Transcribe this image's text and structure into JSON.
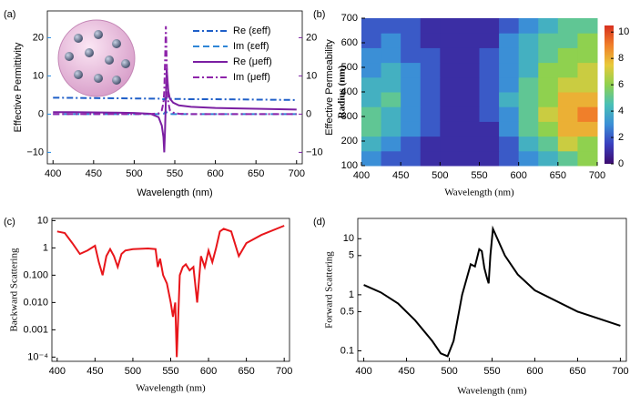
{
  "chart_data": [
    {
      "type": "line",
      "panel": "(a)",
      "xlabel": "Wavelength (nm)",
      "ylabel": "Effective Permittivity",
      "y2label": "Effective Permeability",
      "ylabel_color": "#1e88e5",
      "y2label_color": "#7b1fa2",
      "xlim": [
        393,
        707
      ],
      "xticks": [
        400,
        450,
        500,
        550,
        600,
        650,
        700
      ],
      "ylim": [
        -13,
        27
      ],
      "yticks": [
        {
          "value": -10,
          "label": "−10"
        },
        0,
        10,
        20
      ],
      "y2lim": [
        -13,
        27
      ],
      "y2ticks": [
        {
          "value": -10,
          "label": "−10"
        },
        0,
        10,
        20
      ],
      "x": [
        400,
        425,
        450,
        475,
        500,
        520,
        530,
        534,
        536,
        537,
        538,
        539,
        540,
        541,
        542,
        544,
        548,
        555,
        570,
        600,
        650,
        700
      ],
      "series": [
        {
          "name": "Re (εeff)",
          "color": "#1f5fc8",
          "dash": "dashdot",
          "values": [
            4.3,
            4.25,
            4.2,
            4.15,
            4.1,
            4.06,
            4.04,
            4.0,
            3.9,
            3.8,
            4.1,
            4.3,
            4.1,
            4.0,
            4.0,
            3.98,
            3.98,
            3.96,
            3.9,
            3.9,
            3.8,
            3.7
          ]
        },
        {
          "name": "Im (εeff)",
          "color": "#2f86d6",
          "dash": "dashed",
          "values": [
            0,
            0,
            0,
            0,
            0,
            0,
            0,
            0.05,
            0.1,
            0.2,
            0.5,
            0.8,
            0.4,
            0.2,
            0.1,
            0.05,
            0,
            0,
            0,
            0,
            0,
            0
          ]
        },
        {
          "name": "Re (μeff)",
          "color": "#7b1fa2",
          "dash": "solid",
          "axis": "y2",
          "values": [
            0.5,
            0.5,
            0.45,
            0.4,
            0.3,
            0.1,
            -0.8,
            -3,
            -6,
            -10,
            -4,
            4,
            12,
            9,
            6,
            4,
            3,
            2.3,
            1.9,
            1.6,
            1.4,
            1.2
          ]
        },
        {
          "name": "Im (μeff)",
          "color": "#8e24aa",
          "dash": "dashdot",
          "axis": "y2",
          "values": [
            0,
            0,
            0,
            0,
            0,
            0.05,
            0.2,
            1,
            3,
            6,
            14,
            23,
            14,
            6,
            3,
            1,
            0.4,
            0.1,
            0,
            0,
            0,
            0
          ]
        }
      ]
    },
    {
      "type": "heatmap",
      "panel": "(b)",
      "xlabel": "Wavelength (nm)",
      "ylabel": "Radius (nm)",
      "xlim": [
        400,
        700
      ],
      "xticks": [
        400,
        450,
        500,
        550,
        600,
        650,
        700
      ],
      "ylim": [
        100,
        700
      ],
      "yticks": [
        100,
        200,
        300,
        400,
        500,
        600,
        700
      ],
      "zlim": [
        0,
        10.5
      ],
      "zticks": [
        0,
        2,
        4,
        6,
        8,
        10
      ],
      "colorscale": [
        "#3d0b6e",
        "#3a3fbf",
        "#3b8fd6",
        "#49c0b6",
        "#8fd14f",
        "#e8c93a",
        "#f07f2a",
        "#d7301f"
      ],
      "x": [
        412.5,
        437.5,
        462.5,
        487.5,
        512.5,
        537.5,
        562.5,
        587.5,
        612.5,
        637.5,
        662.5,
        687.5
      ],
      "y": [
        130,
        190,
        250,
        310,
        370,
        430,
        490,
        550,
        610,
        670
      ],
      "z": [
        [
          3,
          2,
          2,
          1,
          1,
          1,
          1,
          2,
          3,
          4,
          5,
          6
        ],
        [
          4,
          3,
          2,
          1,
          1,
          1,
          1,
          2,
          4,
          5,
          7,
          6
        ],
        [
          5,
          4,
          3,
          2,
          1,
          1,
          1,
          3,
          5,
          6,
          8,
          8
        ],
        [
          5,
          4,
          3,
          2,
          1,
          1,
          2,
          3,
          5,
          7,
          8,
          9
        ],
        [
          4,
          5,
          3,
          2,
          1,
          1,
          2,
          4,
          5,
          6,
          8,
          8
        ],
        [
          4,
          4,
          3,
          2,
          1,
          1,
          2,
          3,
          5,
          6,
          7,
          7
        ],
        [
          3,
          4,
          3,
          2,
          1,
          1,
          2,
          3,
          4,
          6,
          6,
          7
        ],
        [
          3,
          3,
          2,
          2,
          1,
          1,
          2,
          3,
          4,
          5,
          6,
          6
        ],
        [
          2,
          3,
          2,
          1,
          1,
          1,
          1,
          3,
          4,
          5,
          5,
          6
        ],
        [
          2,
          2,
          2,
          1,
          1,
          1,
          1,
          2,
          3,
          4,
          5,
          5
        ]
      ]
    },
    {
      "type": "line",
      "panel": "(c)",
      "xlabel": "Wavelength (nm)",
      "ylabel": "Backward Scattering",
      "log_y": true,
      "xlim": [
        393,
        707
      ],
      "xticks": [
        400,
        450,
        500,
        550,
        600,
        650,
        700
      ],
      "ylim": [
        7e-05,
        12
      ],
      "yticks": [
        {
          "value": 0.0001,
          "label": "10⁻⁴"
        },
        0.001,
        {
          "value": 0.01,
          "label": "0.010"
        },
        {
          "value": 0.1,
          "label": "0.100"
        },
        1,
        10
      ],
      "x": [
        400,
        410,
        420,
        430,
        440,
        450,
        455,
        460,
        465,
        470,
        475,
        480,
        485,
        490,
        500,
        520,
        530,
        533,
        536,
        540,
        545,
        550,
        553,
        556,
        558,
        562,
        566,
        570,
        575,
        580,
        585,
        590,
        595,
        600,
        605,
        610,
        615,
        620,
        630,
        640,
        650,
        670,
        700
      ],
      "series": [
        {
          "color": "#e8161b",
          "dash": "solid",
          "values": [
            4,
            3.5,
            1.5,
            0.6,
            0.8,
            1.2,
            0.3,
            0.1,
            0.5,
            0.9,
            0.5,
            0.2,
            0.6,
            0.8,
            0.9,
            0.95,
            0.9,
            0.2,
            0.4,
            0.1,
            0.05,
            0.01,
            0.003,
            0.01,
            0.0001,
            0.1,
            0.2,
            0.25,
            0.15,
            0.2,
            0.01,
            0.5,
            0.2,
            0.8,
            0.3,
            1,
            4,
            5,
            4,
            0.5,
            1.5,
            3,
            6.5
          ]
        }
      ]
    },
    {
      "type": "line",
      "panel": "(d)",
      "xlabel": "Wavelength (nm)",
      "ylabel": "Forward Scattering",
      "log_y": true,
      "xlim": [
        393,
        707
      ],
      "xticks": [
        400,
        450,
        500,
        550,
        600,
        650,
        700
      ],
      "ylim": [
        0.065,
        23
      ],
      "yticks": [
        0.1,
        0.5,
        1,
        5,
        10
      ],
      "x": [
        400,
        420,
        440,
        460,
        480,
        490,
        498,
        505,
        515,
        525,
        530,
        535,
        538,
        541,
        544,
        546,
        548,
        551,
        555,
        565,
        580,
        600,
        650,
        700
      ],
      "series": [
        {
          "color": "#000000",
          "dash": "solid",
          "values": [
            1.5,
            1.1,
            0.7,
            0.35,
            0.15,
            0.09,
            0.08,
            0.15,
            1,
            3.5,
            3.2,
            6.5,
            6,
            3,
            2,
            1.6,
            5,
            15,
            11,
            5,
            2.3,
            1.2,
            0.5,
            0.28
          ]
        }
      ]
    }
  ]
}
